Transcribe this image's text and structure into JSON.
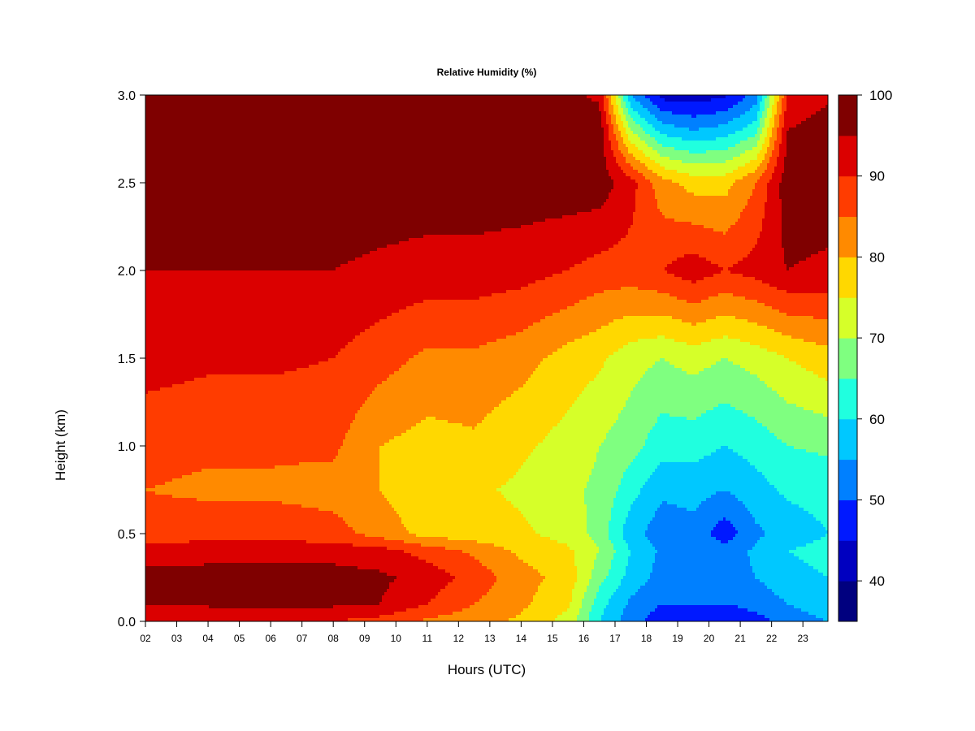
{
  "chart_data": {
    "type": "heatmap",
    "title": "Relative Humidity (%)",
    "xlabel": "Hours (UTC)",
    "ylabel": "Height (km)",
    "xlim": [
      2,
      23.8
    ],
    "ylim": [
      0,
      3
    ],
    "x_ticks": [
      "02",
      "03",
      "04",
      "05",
      "06",
      "07",
      "08",
      "09",
      "10",
      "11",
      "12",
      "13",
      "14",
      "15",
      "16",
      "17",
      "18",
      "19",
      "20",
      "21",
      "22",
      "23"
    ],
    "y_ticks": [
      "0.0",
      "0.5",
      "1.0",
      "1.5",
      "2.0",
      "2.5",
      "3.0"
    ],
    "grid": false,
    "colorbar": {
      "levels": [
        35,
        40,
        45,
        50,
        55,
        60,
        65,
        70,
        75,
        80,
        85,
        90,
        95,
        100
      ],
      "colors": [
        "#00007f",
        "#0000c0",
        "#0019ff",
        "#0080ff",
        "#00c8ff",
        "#20ffdf",
        "#7fff80",
        "#d6ff29",
        "#ffd800",
        "#ff8a00",
        "#ff3c00",
        "#db0000",
        "#7f0000"
      ],
      "tick_labels": [
        "40",
        "50",
        "60",
        "70",
        "80",
        "90",
        "100"
      ],
      "tick_values": [
        40,
        50,
        60,
        70,
        80,
        90,
        100
      ]
    },
    "grid_hours": [
      2,
      4,
      6,
      8,
      9.5,
      11,
      12.5,
      14,
      15.5,
      16.5,
      17.5,
      18.5,
      19.5,
      20.5,
      21.5,
      22.5,
      23.8
    ],
    "grid_heights": [
      0.0,
      0.1,
      0.25,
      0.4,
      0.5,
      0.75,
      1.0,
      1.5,
      2.0,
      2.5,
      2.8,
      3.0
    ],
    "rh_values": [
      [
        90,
        95,
        97,
        92,
        87,
        85,
        87,
        92,
        95,
        98,
        98,
        99
      ],
      [
        90,
        96,
        97,
        93,
        88,
        84,
        86,
        91,
        95,
        98,
        98,
        99
      ],
      [
        90,
        96,
        97,
        93,
        88,
        84,
        86,
        91,
        95,
        98,
        98,
        99
      ],
      [
        90,
        96,
        97,
        93,
        87,
        83,
        86,
        90,
        95,
        98,
        98,
        99
      ],
      [
        88,
        95,
        96,
        92,
        83,
        80,
        80,
        87,
        94,
        98,
        98,
        99
      ],
      [
        84,
        90,
        93,
        88,
        78,
        76,
        78,
        84,
        93,
        98,
        98,
        97
      ],
      [
        82,
        85,
        88,
        84,
        77,
        76,
        79,
        84,
        93,
        98,
        98,
        96
      ],
      [
        79,
        81,
        82,
        79,
        76,
        74,
        76,
        82,
        92,
        98,
        97,
        95
      ],
      [
        73,
        76,
        78,
        76,
        73,
        71,
        73,
        78,
        90,
        98,
        98,
        96
      ],
      [
        60,
        62,
        67,
        70,
        68,
        69,
        70,
        76,
        88,
        98,
        98,
        94
      ],
      [
        52,
        54,
        58,
        60,
        57,
        62,
        67,
        72,
        88,
        92,
        70,
        55
      ],
      [
        47,
        50,
        53,
        54,
        52,
        56,
        62,
        70,
        90,
        82,
        58,
        43
      ],
      [
        47,
        50,
        53,
        55,
        53,
        57,
        62,
        72,
        93,
        78,
        55,
        42
      ],
      [
        45,
        50,
        53,
        52,
        47,
        55,
        60,
        70,
        90,
        78,
        57,
        44
      ],
      [
        48,
        52,
        55,
        56,
        54,
        58,
        62,
        72,
        92,
        85,
        63,
        52
      ],
      [
        52,
        55,
        58,
        60,
        57,
        61,
        65,
        75,
        95,
        98,
        95,
        90
      ],
      [
        55,
        58,
        60,
        62,
        60,
        62,
        66,
        78,
        94,
        98,
        98,
        94
      ]
    ]
  }
}
